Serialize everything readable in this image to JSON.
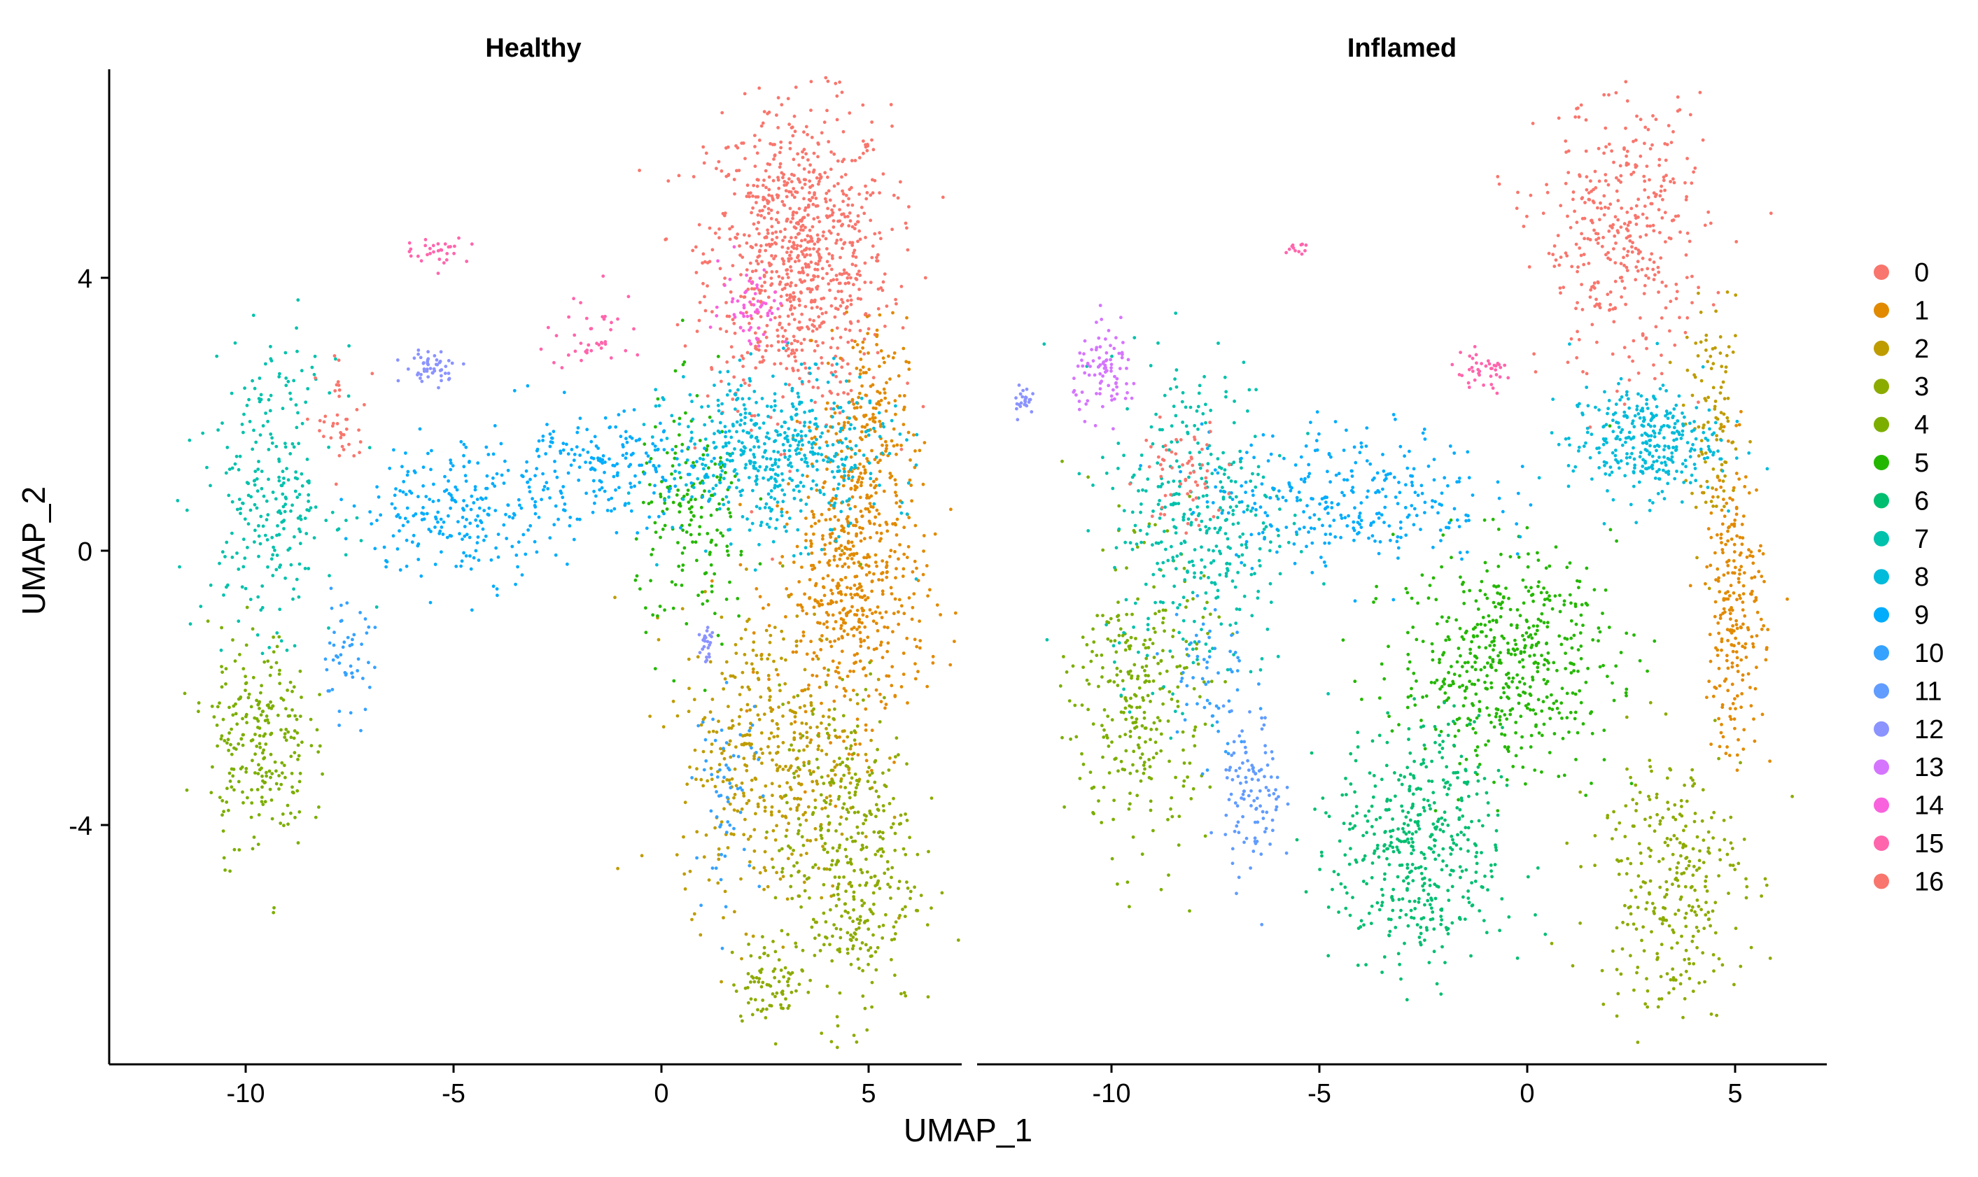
{
  "chart_data": {
    "type": "scatter",
    "xlabel": "UMAP_1",
    "ylabel": "UMAP_2",
    "xlim": [
      -13.3,
      7.3
    ],
    "ylim": [
      -7.4,
      7.1
    ],
    "x_ticks": [
      -10,
      -5,
      0,
      5
    ],
    "y_ticks": [
      -4,
      0,
      4
    ],
    "x_tick_labels": [
      "-10",
      "-5",
      "0",
      "5"
    ],
    "y_tick_labels": [
      "-4",
      "0",
      "4"
    ],
    "grid": false,
    "legend_position": "right",
    "legend_title": "",
    "clusters": [
      {
        "name": "0",
        "color": "#F8766D"
      },
      {
        "name": "1",
        "color": "#E18A00"
      },
      {
        "name": "2",
        "color": "#BE9C00"
      },
      {
        "name": "3",
        "color": "#8CAB00"
      },
      {
        "name": "4",
        "color": "#7CAE00"
      },
      {
        "name": "5",
        "color": "#24B700"
      },
      {
        "name": "6",
        "color": "#00BE70"
      },
      {
        "name": "7",
        "color": "#00C1AB"
      },
      {
        "name": "8",
        "color": "#00BBDA"
      },
      {
        "name": "9",
        "color": "#00ACFC"
      },
      {
        "name": "10",
        "color": "#35A2FF"
      },
      {
        "name": "11",
        "color": "#619CFF"
      },
      {
        "name": "12",
        "color": "#8B93FF"
      },
      {
        "name": "13",
        "color": "#D575FE"
      },
      {
        "name": "14",
        "color": "#F962DD"
      },
      {
        "name": "15",
        "color": "#FF65AC"
      },
      {
        "name": "16",
        "color": "#F8766D"
      }
    ],
    "panels": [
      {
        "title": "Healthy",
        "regions": [
          {
            "cluster": "0",
            "cx": 3.3,
            "cy": 4.3,
            "sx": 1.1,
            "sy": 1.1,
            "n": 900
          },
          {
            "cluster": "1",
            "cx": 4.6,
            "cy": -0.6,
            "sx": 0.9,
            "sy": 1.0,
            "n": 520
          },
          {
            "cluster": "1",
            "cx": 4.9,
            "cy": 1.8,
            "sx": 0.5,
            "sy": 0.8,
            "n": 200
          },
          {
            "cluster": "2",
            "cx": 2.6,
            "cy": -3.0,
            "sx": 1.1,
            "sy": 1.1,
            "n": 420
          },
          {
            "cluster": "3",
            "cx": 4.5,
            "cy": -4.5,
            "sx": 0.8,
            "sy": 1.2,
            "n": 400
          },
          {
            "cluster": "3",
            "cx": 2.7,
            "cy": -6.3,
            "sx": 0.5,
            "sy": 0.3,
            "n": 80
          },
          {
            "cluster": "4",
            "cx": -9.7,
            "cy": -2.8,
            "sx": 0.6,
            "sy": 0.8,
            "n": 250
          },
          {
            "cluster": "5",
            "cx": 0.8,
            "cy": 0.4,
            "sx": 0.7,
            "sy": 0.9,
            "n": 180
          },
          {
            "cluster": "7",
            "cx": -9.4,
            "cy": 0.9,
            "sx": 0.8,
            "sy": 1.0,
            "n": 260
          },
          {
            "cluster": "8",
            "cx": 2.8,
            "cy": 1.4,
            "sx": 1.3,
            "sy": 0.6,
            "n": 520
          },
          {
            "cluster": "9",
            "cx": -4.8,
            "cy": 0.6,
            "sx": 1.2,
            "sy": 0.5,
            "n": 230
          },
          {
            "cluster": "9",
            "cx": -1.6,
            "cy": 1.2,
            "sx": 1.3,
            "sy": 0.4,
            "n": 200
          },
          {
            "cluster": "10",
            "cx": -7.6,
            "cy": -1.6,
            "sx": 0.35,
            "sy": 0.4,
            "n": 50
          },
          {
            "cluster": "10",
            "cx": 1.6,
            "cy": -3.5,
            "sx": 0.4,
            "sy": 0.7,
            "n": 60
          },
          {
            "cluster": "12",
            "cx": -5.5,
            "cy": 2.7,
            "sx": 0.35,
            "sy": 0.12,
            "n": 50
          },
          {
            "cluster": "12",
            "cx": 1.1,
            "cy": -1.4,
            "sx": 0.1,
            "sy": 0.2,
            "n": 25
          },
          {
            "cluster": "14",
            "cx": 2.2,
            "cy": 3.6,
            "sx": 0.4,
            "sy": 0.3,
            "n": 60
          },
          {
            "cluster": "15",
            "cx": -5.4,
            "cy": 4.4,
            "sx": 0.4,
            "sy": 0.1,
            "n": 30
          },
          {
            "cluster": "15",
            "cx": -1.6,
            "cy": 3.2,
            "sx": 0.6,
            "sy": 0.3,
            "n": 40
          },
          {
            "cluster": "16",
            "cx": -7.7,
            "cy": 1.9,
            "sx": 0.3,
            "sy": 0.4,
            "n": 40
          }
        ]
      },
      {
        "title": "Inflamed",
        "regions": [
          {
            "cluster": "0",
            "cx": 2.3,
            "cy": 4.6,
            "sx": 1.0,
            "sy": 1.0,
            "n": 380
          },
          {
            "cluster": "1",
            "cx": 5.0,
            "cy": -0.8,
            "sx": 0.35,
            "sy": 1.1,
            "n": 240
          },
          {
            "cluster": "2",
            "cx": 4.5,
            "cy": 1.8,
            "sx": 0.35,
            "sy": 0.8,
            "n": 100
          },
          {
            "cluster": "3",
            "cx": 3.4,
            "cy": -4.8,
            "sx": 0.9,
            "sy": 1.0,
            "n": 300
          },
          {
            "cluster": "4",
            "cx": -9.3,
            "cy": -2.2,
            "sx": 0.8,
            "sy": 1.1,
            "n": 300
          },
          {
            "cluster": "5",
            "cx": -0.5,
            "cy": -1.6,
            "sx": 1.3,
            "sy": 0.8,
            "n": 520
          },
          {
            "cluster": "6",
            "cx": -2.6,
            "cy": -4.4,
            "sx": 1.0,
            "sy": 0.9,
            "n": 460
          },
          {
            "cluster": "7",
            "cx": -7.9,
            "cy": 0.5,
            "sx": 1.1,
            "sy": 1.2,
            "n": 380
          },
          {
            "cluster": "8",
            "cx": 2.8,
            "cy": 1.6,
            "sx": 0.9,
            "sy": 0.4,
            "n": 320
          },
          {
            "cluster": "9",
            "cx": -4.3,
            "cy": 0.8,
            "sx": 1.7,
            "sy": 0.5,
            "n": 300
          },
          {
            "cluster": "10",
            "cx": -7.7,
            "cy": -1.9,
            "sx": 0.5,
            "sy": 0.7,
            "n": 60
          },
          {
            "cluster": "11",
            "cx": -6.6,
            "cy": -3.6,
            "sx": 0.35,
            "sy": 0.6,
            "n": 110
          },
          {
            "cluster": "12",
            "cx": -12.1,
            "cy": 2.2,
            "sx": 0.12,
            "sy": 0.12,
            "n": 25
          },
          {
            "cluster": "13",
            "cx": -10.1,
            "cy": 2.6,
            "sx": 0.4,
            "sy": 0.3,
            "n": 90
          },
          {
            "cluster": "15",
            "cx": -1.1,
            "cy": 2.6,
            "sx": 0.4,
            "sy": 0.15,
            "n": 40
          },
          {
            "cluster": "15",
            "cx": -5.5,
            "cy": 4.4,
            "sx": 0.2,
            "sy": 0.07,
            "n": 12
          },
          {
            "cluster": "16",
            "cx": -8.3,
            "cy": 1.1,
            "sx": 0.5,
            "sy": 0.4,
            "n": 60
          }
        ]
      }
    ]
  }
}
